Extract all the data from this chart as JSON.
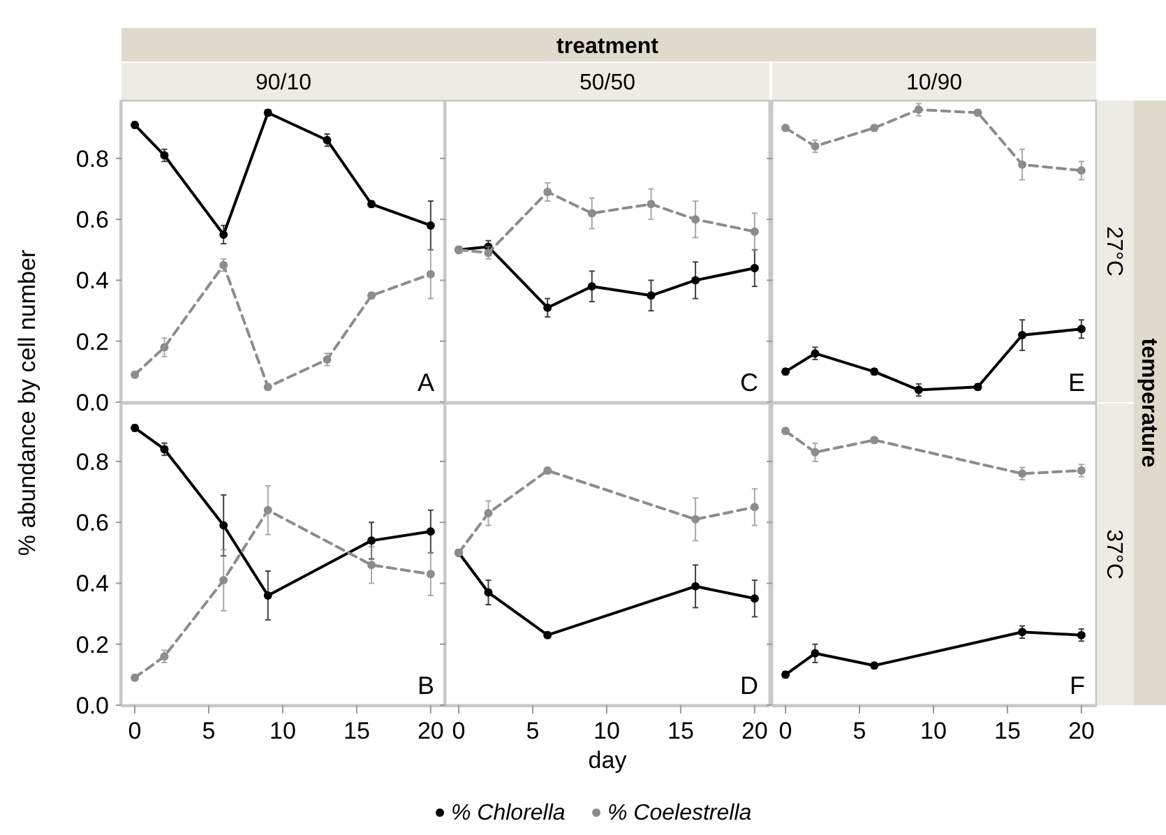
{
  "chart_data": [
    {
      "type": "line",
      "title": "90/10",
      "ylabel": "% abundance by cell number",
      "annotations": [
        "A"
      ],
      "xlim": [
        -0.9,
        21
      ],
      "ylim": [
        0,
        0.99
      ],
      "yticks": [
        {
          "value": 0,
          "label": "0.0"
        },
        0.2,
        0.4,
        0.6,
        0.8
      ],
      "tick_labels": "y",
      "marker": "circle",
      "series": [
        {
          "color": "#000000",
          "line_style": "solid",
          "x": [
            0,
            2,
            6,
            9,
            13,
            16,
            20
          ],
          "values": [
            0.91,
            0.81,
            0.55,
            0.95,
            0.86,
            0.65,
            0.58
          ],
          "errors": [
            0.01,
            0.02,
            0.03,
            0.01,
            0.02,
            0.01,
            0.08
          ]
        },
        {
          "color": "#8c8c8c",
          "line_style": "dashed",
          "x": [
            0,
            2,
            6,
            9,
            13,
            16,
            20
          ],
          "values": [
            0.09,
            0.18,
            0.45,
            0.05,
            0.14,
            0.35,
            0.42
          ],
          "errors": [
            0.01,
            0.03,
            0.02,
            0.01,
            0.02,
            0.01,
            0.08
          ]
        }
      ]
    },
    {
      "type": "line",
      "title": "50/50",
      "annotations": [
        "C",
        "treatment"
      ],
      "xlim": [
        -0.9,
        21
      ],
      "ylim": [
        0,
        0.99
      ],
      "yticks": [
        {
          "value": 0,
          "label": null
        },
        {
          "value": 0.2,
          "label": null
        },
        {
          "value": 0.4,
          "label": null
        },
        {
          "value": 0.6,
          "label": null
        },
        {
          "value": 0.8,
          "label": null
        }
      ],
      "tick_labels": false,
      "marker": "circle",
      "series": [
        {
          "color": "#000000",
          "line_style": "solid",
          "x": [
            0,
            2,
            6,
            9,
            13,
            16,
            20
          ],
          "values": [
            0.5,
            0.51,
            0.31,
            0.38,
            0.35,
            0.4,
            0.44
          ],
          "errors": [
            0.01,
            0.02,
            0.03,
            0.05,
            0.05,
            0.06,
            0.06
          ]
        },
        {
          "color": "#8c8c8c",
          "line_style": "dashed",
          "x": [
            0,
            2,
            6,
            9,
            13,
            16,
            20
          ],
          "values": [
            0.5,
            0.49,
            0.69,
            0.62,
            0.65,
            0.6,
            0.56
          ],
          "errors": [
            0.01,
            0.02,
            0.03,
            0.05,
            0.05,
            0.06,
            0.06
          ]
        }
      ]
    },
    {
      "type": "line",
      "title": "10/90",
      "annotations": [
        "E",
        "27°C",
        "temperature"
      ],
      "xlim": [
        -0.9,
        21
      ],
      "ylim": [
        0,
        0.99
      ],
      "yticks": [
        {
          "value": 0,
          "label": null
        },
        {
          "value": 0.2,
          "label": null
        },
        {
          "value": 0.4,
          "label": null
        },
        {
          "value": 0.6,
          "label": null
        },
        {
          "value": 0.8,
          "label": null
        }
      ],
      "tick_labels": false,
      "marker": "circle",
      "series": [
        {
          "color": "#000000",
          "line_style": "solid",
          "x": [
            0,
            2,
            6,
            9,
            13,
            16,
            20
          ],
          "values": [
            0.1,
            0.16,
            0.1,
            0.04,
            0.05,
            0.22,
            0.24
          ],
          "errors": [
            0.01,
            0.02,
            0.01,
            0.02,
            0.01,
            0.05,
            0.03
          ]
        },
        {
          "color": "#8c8c8c",
          "line_style": "dashed",
          "x": [
            0,
            2,
            6,
            9,
            13,
            16,
            20
          ],
          "values": [
            0.9,
            0.84,
            0.9,
            0.96,
            0.95,
            0.78,
            0.76
          ],
          "errors": [
            0.01,
            0.02,
            0.01,
            0.02,
            0.01,
            0.05,
            0.03
          ]
        }
      ]
    },
    {
      "type": "line",
      "annotations": [
        "B"
      ],
      "xlim": [
        -0.9,
        21
      ],
      "xticks": [
        0,
        5,
        10,
        15,
        20
      ],
      "ylim": [
        0,
        0.99
      ],
      "yticks": [
        {
          "value": 0,
          "label": "0.0"
        },
        0.2,
        0.4,
        0.6,
        0.8
      ],
      "marker": "circle",
      "series": [
        {
          "color": "#000000",
          "line_style": "solid",
          "x": [
            0,
            2,
            6,
            9,
            16,
            20
          ],
          "values": [
            0.91,
            0.84,
            0.59,
            0.36,
            0.54,
            0.57
          ],
          "errors": [
            0.01,
            0.02,
            0.1,
            0.08,
            0.06,
            0.07
          ]
        },
        {
          "color": "#8c8c8c",
          "line_style": "dashed",
          "x": [
            0,
            2,
            6,
            9,
            16,
            20
          ],
          "values": [
            0.09,
            0.16,
            0.41,
            0.64,
            0.46,
            0.43
          ],
          "errors": [
            0.01,
            0.02,
            0.1,
            0.08,
            0.06,
            0.07
          ]
        }
      ]
    },
    {
      "type": "line",
      "xlabel": "day",
      "legend": "bottom",
      "annotations": [
        "D"
      ],
      "xlim": [
        -0.9,
        21
      ],
      "xticks": [
        0,
        5,
        10,
        15,
        20
      ],
      "ylim": [
        0,
        0.99
      ],
      "yticks": [
        {
          "value": 0,
          "label": null
        },
        {
          "value": 0.2,
          "label": null
        },
        {
          "value": 0.4,
          "label": null
        },
        {
          "value": 0.6,
          "label": null
        },
        {
          "value": 0.8,
          "label": null
        }
      ],
      "tick_labels": "x",
      "marker": "circle",
      "series": [
        {
          "name": "% Chlorella",
          "color": "#000000",
          "line_style": "solid",
          "x": [
            0,
            2,
            6,
            16,
            20
          ],
          "values": [
            0.5,
            0.37,
            0.23,
            0.39,
            0.35
          ],
          "errors": [
            0.01,
            0.04,
            0.01,
            0.07,
            0.06
          ]
        },
        {
          "name": "% Coelestrella",
          "color": "#8c8c8c",
          "line_style": "dashed",
          "x": [
            0,
            2,
            6,
            16,
            20
          ],
          "values": [
            0.5,
            0.63,
            0.77,
            0.61,
            0.65
          ],
          "errors": [
            0.01,
            0.04,
            0.01,
            0.07,
            0.06
          ]
        }
      ]
    },
    {
      "type": "line",
      "annotations": [
        "F",
        "37°C"
      ],
      "xlim": [
        -0.9,
        21
      ],
      "xticks": [
        0,
        5,
        10,
        15,
        20
      ],
      "ylim": [
        0,
        0.99
      ],
      "yticks": [
        {
          "value": 0,
          "label": null
        },
        {
          "value": 0.2,
          "label": null
        },
        {
          "value": 0.4,
          "label": null
        },
        {
          "value": 0.6,
          "label": null
        },
        {
          "value": 0.8,
          "label": null
        }
      ],
      "tick_labels": "x",
      "marker": "circle",
      "series": [
        {
          "color": "#000000",
          "line_style": "solid",
          "x": [
            0,
            2,
            6,
            16,
            20
          ],
          "values": [
            0.1,
            0.17,
            0.13,
            0.24,
            0.23
          ],
          "errors": [
            0.01,
            0.03,
            0.01,
            0.02,
            0.02
          ]
        },
        {
          "color": "#8c8c8c",
          "line_style": "dashed",
          "x": [
            0,
            2,
            6,
            16,
            20
          ],
          "values": [
            0.9,
            0.83,
            0.87,
            0.76,
            0.77
          ],
          "errors": [
            0.01,
            0.03,
            0.01,
            0.02,
            0.02
          ]
        }
      ]
    }
  ]
}
